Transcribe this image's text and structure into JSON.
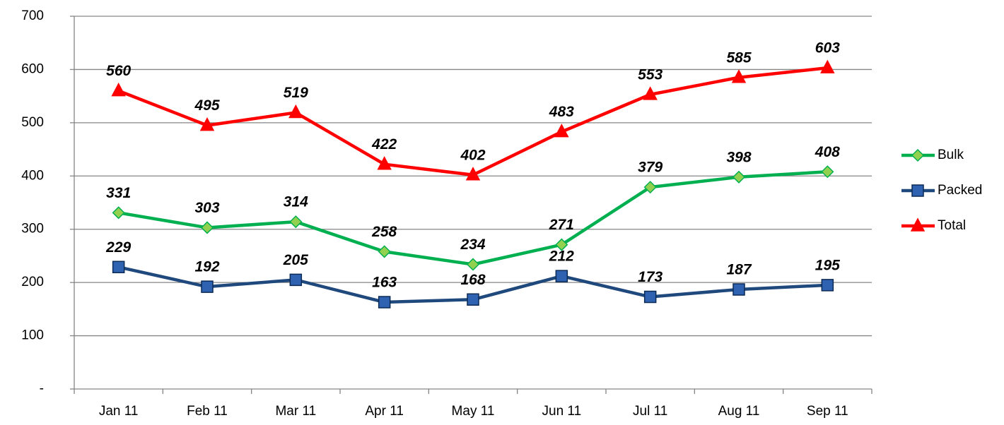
{
  "chart_data": {
    "type": "line",
    "categories": [
      "Jan 11",
      "Feb 11",
      "Mar 11",
      "Apr 11",
      "May 11",
      "Jun 11",
      "Jul 11",
      "Aug 11",
      "Sep 11"
    ],
    "series": [
      {
        "name": "Bulk",
        "color": "#00b050",
        "marker": "diamond",
        "marker_color": "#92d050",
        "values": [
          331,
          303,
          314,
          258,
          234,
          271,
          379,
          398,
          408
        ]
      },
      {
        "name": "Packed",
        "color": "#1f497d",
        "marker": "square",
        "marker_color": "#2f62b0",
        "values": [
          229,
          192,
          205,
          163,
          168,
          212,
          173,
          187,
          195
        ]
      },
      {
        "name": "Total",
        "color": "#ff0000",
        "marker": "triangle",
        "marker_color": "#ff0000",
        "values": [
          560,
          495,
          519,
          422,
          402,
          483,
          553,
          585,
          603
        ]
      }
    ],
    "ylim": [
      0,
      700
    ],
    "yticks": [
      {
        "value": 0,
        "label": "-"
      },
      100,
      200,
      300,
      400,
      500,
      600,
      700
    ],
    "grid": true,
    "legend": "right"
  }
}
